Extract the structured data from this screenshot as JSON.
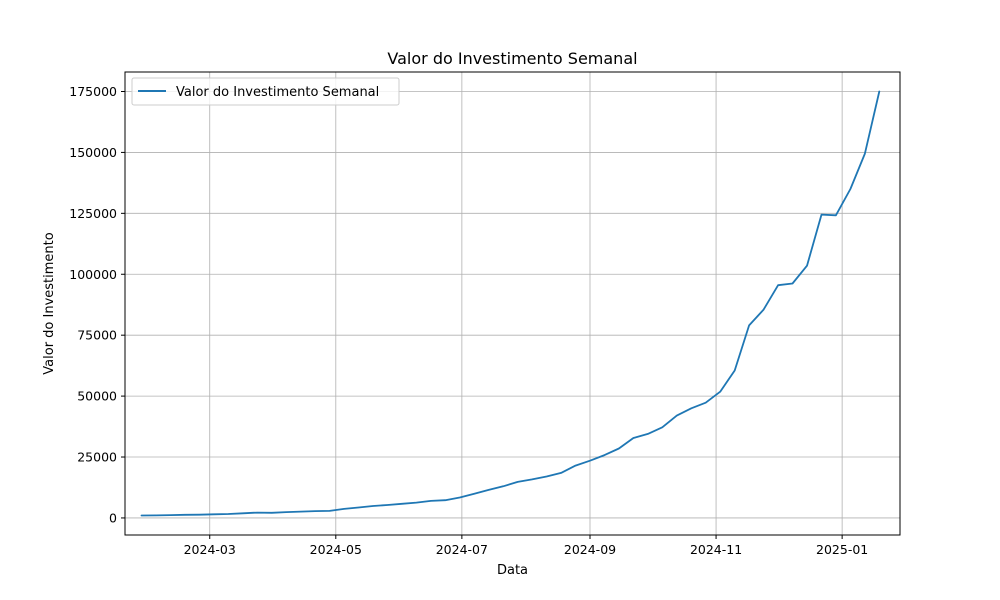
{
  "chart_data": {
    "type": "line",
    "title": "Valor do Investimento Semanal",
    "xlabel": "Data",
    "ylabel": "Valor do Investimento",
    "x_axis_type": "date",
    "xlim": [
      "2024-01-20",
      "2025-01-29"
    ],
    "ylim": [
      -7000,
      183000
    ],
    "xticks": [
      {
        "value": "2024-03-01",
        "label": "2024-03"
      },
      {
        "value": "2024-05-01",
        "label": "2024-05"
      },
      {
        "value": "2024-07-01",
        "label": "2024-07"
      },
      {
        "value": "2024-09-01",
        "label": "2024-09"
      },
      {
        "value": "2024-11-01",
        "label": "2024-11"
      },
      {
        "value": "2025-01-01",
        "label": "2025-01"
      }
    ],
    "yticks": [
      {
        "value": 0,
        "label": "0"
      },
      {
        "value": 25000,
        "label": "25000"
      },
      {
        "value": 50000,
        "label": "50000"
      },
      {
        "value": 75000,
        "label": "75000"
      },
      {
        "value": 100000,
        "label": "100000"
      },
      {
        "value": 125000,
        "label": "125000"
      },
      {
        "value": 150000,
        "label": "150000"
      },
      {
        "value": 175000,
        "label": "175000"
      }
    ],
    "grid": true,
    "legend": {
      "position": "top-left"
    },
    "series": [
      {
        "name": "Valor do Investimento Semanal",
        "color": "#1f77b4",
        "x": [
          "2024-01-28",
          "2024-02-04",
          "2024-02-11",
          "2024-02-18",
          "2024-02-25",
          "2024-03-03",
          "2024-03-10",
          "2024-03-17",
          "2024-03-24",
          "2024-03-31",
          "2024-04-07",
          "2024-04-14",
          "2024-04-21",
          "2024-04-28",
          "2024-05-05",
          "2024-05-12",
          "2024-05-19",
          "2024-05-26",
          "2024-06-02",
          "2024-06-09",
          "2024-06-16",
          "2024-06-23",
          "2024-06-30",
          "2024-07-07",
          "2024-07-14",
          "2024-07-21",
          "2024-07-28",
          "2024-08-04",
          "2024-08-11",
          "2024-08-18",
          "2024-08-25",
          "2024-09-01",
          "2024-09-08",
          "2024-09-15",
          "2024-09-22",
          "2024-09-29",
          "2024-10-06",
          "2024-10-13",
          "2024-10-20",
          "2024-10-27",
          "2024-11-03",
          "2024-11-10",
          "2024-11-17",
          "2024-11-24",
          "2024-12-01",
          "2024-12-08",
          "2024-12-15",
          "2024-12-22",
          "2024-12-29",
          "2025-01-05",
          "2025-01-12",
          "2025-01-19"
        ],
        "values": [
          1000,
          1050,
          1150,
          1300,
          1350,
          1500,
          1600,
          1900,
          2200,
          2100,
          2400,
          2600,
          2800,
          2900,
          3700,
          4300,
          4900,
          5300,
          5800,
          6300,
          7000,
          7300,
          8400,
          9900,
          11500,
          13000,
          14800,
          15800,
          17000,
          18500,
          21500,
          23500,
          25800,
          28500,
          32800,
          34500,
          37200,
          42000,
          45000,
          47300,
          51800,
          60500,
          79000,
          85500,
          95500,
          96200,
          103500,
          124500,
          124200,
          135000,
          149500,
          175000
        ]
      }
    ]
  }
}
